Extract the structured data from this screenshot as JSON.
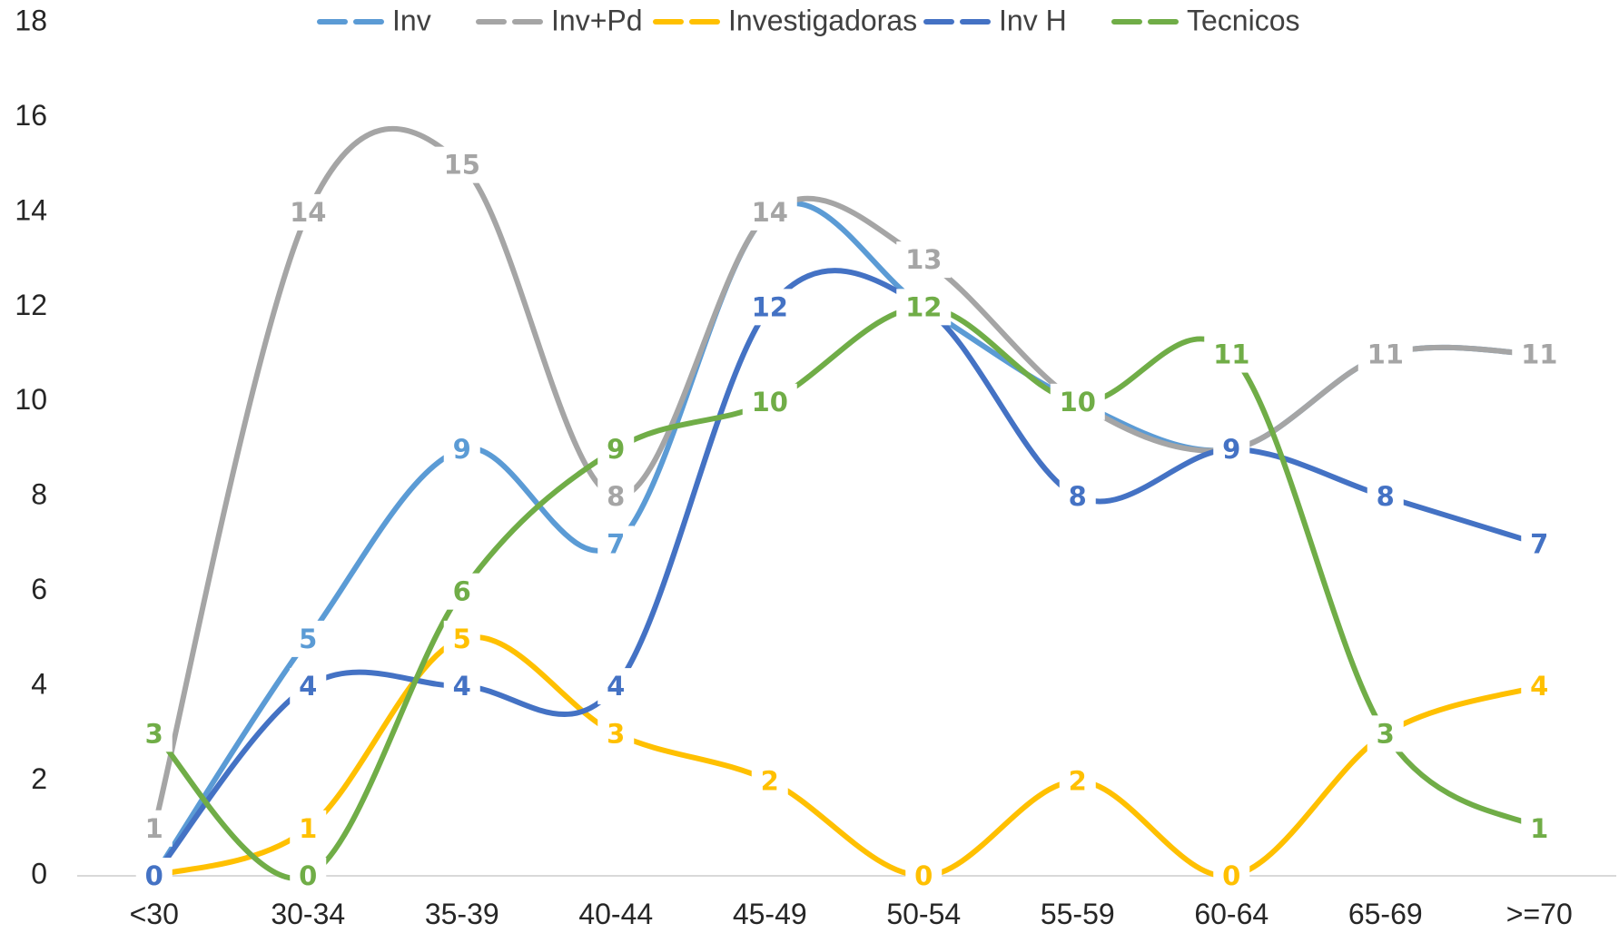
{
  "chart_data": {
    "type": "line",
    "title": "",
    "xlabel": "",
    "ylabel": "",
    "categories": [
      "<30",
      "30-34",
      "35-39",
      "40-44",
      "45-49",
      "50-54",
      "55-59",
      "60-64",
      "65-69",
      ">=70"
    ],
    "ylim": [
      0,
      18
    ],
    "yticks": [
      0,
      2,
      4,
      6,
      8,
      10,
      12,
      14,
      16,
      18
    ],
    "grid": false,
    "smooth": true,
    "dashed": true,
    "legend_position": "top",
    "series": [
      {
        "name": "Inv",
        "color": "#5B9BD5",
        "values": [
          0,
          5,
          9,
          7,
          14,
          12,
          10,
          9,
          11,
          11
        ],
        "labels": [
          null,
          "5",
          "9",
          "7",
          null,
          null,
          null,
          null,
          null,
          null
        ]
      },
      {
        "name": "Inv+Pd",
        "color": "#A5A5A5",
        "values": [
          1,
          14,
          15,
          8,
          14,
          13,
          10,
          9,
          11,
          11
        ],
        "labels": [
          "1",
          "14",
          "15",
          "8",
          "14",
          "13",
          null,
          null,
          "11",
          "11"
        ]
      },
      {
        "name": "Investigadoras",
        "color": "#FFC000",
        "values": [
          0,
          1,
          5,
          3,
          2,
          0,
          2,
          0,
          3,
          4
        ],
        "labels": [
          null,
          "1",
          "5",
          "3",
          "2",
          "0",
          "2",
          "0",
          null,
          "4"
        ]
      },
      {
        "name": "Inv H",
        "color": "#4472C4",
        "values": [
          0,
          4,
          4,
          4,
          12,
          12,
          8,
          9,
          8,
          7
        ],
        "labels": [
          "0",
          "4",
          "4",
          "4",
          "12",
          null,
          "8",
          "9",
          "8",
          "7"
        ]
      },
      {
        "name": "Tecnicos",
        "color": "#70AD47",
        "values": [
          3,
          0,
          6,
          9,
          10,
          12,
          10,
          11,
          3,
          1
        ],
        "labels": [
          "3",
          "0",
          "6",
          "9",
          "10",
          "12",
          "10",
          "11",
          "3",
          "1"
        ]
      }
    ]
  }
}
